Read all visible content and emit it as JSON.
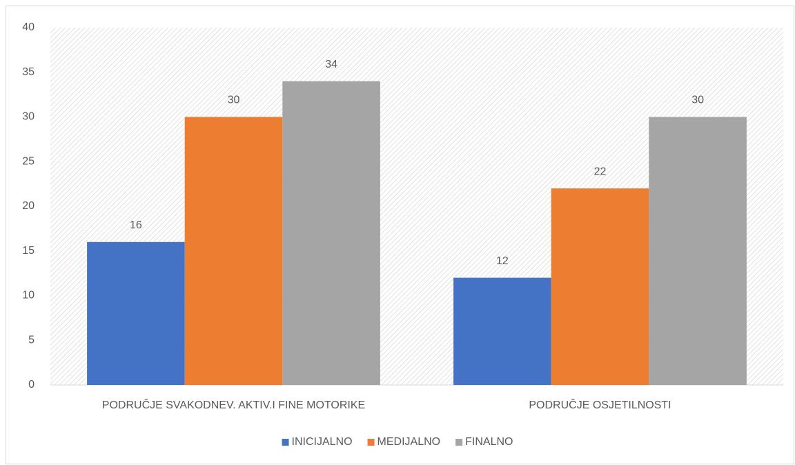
{
  "chart_data": {
    "type": "bar",
    "categories": [
      "PODRUČJE SVAKODNEV. AKTIV.I FINE MOTORIKE",
      "PODRUČJE OSJETILNOSTI"
    ],
    "series": [
      {
        "name": "INICIJALNO",
        "color": "#4472c4",
        "values": [
          16,
          12
        ]
      },
      {
        "name": "MEDIJALNO",
        "color": "#ed7d31",
        "values": [
          30,
          22
        ]
      },
      {
        "name": "FINALNO",
        "color": "#a5a5a5",
        "values": [
          34,
          30
        ]
      }
    ],
    "ylim": [
      0,
      40
    ],
    "yticks": [
      0,
      5,
      10,
      15,
      20,
      25,
      30,
      35,
      40
    ],
    "grid": false,
    "legend": "bottom"
  }
}
